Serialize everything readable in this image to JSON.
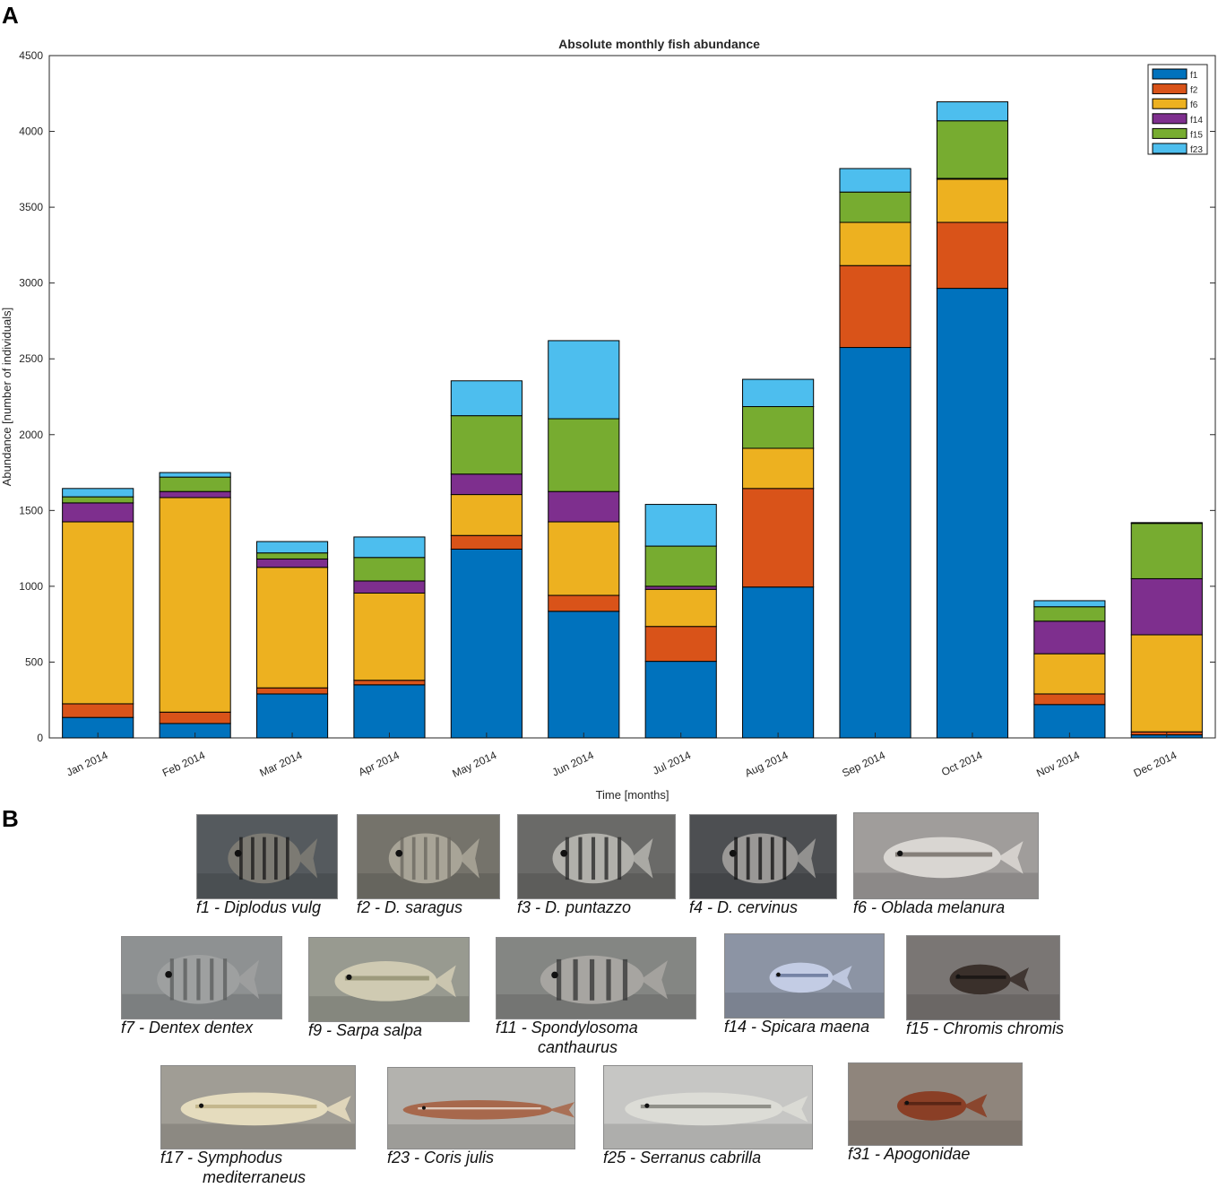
{
  "panels": {
    "a": "A",
    "b": "B"
  },
  "chart_data": {
    "type": "bar",
    "stacked": true,
    "title": "Absolute monthly fish abundance",
    "xlabel": "Time [months]",
    "ylabel": "Abundance [number of individuals]",
    "ylim": [
      0,
      4500
    ],
    "yticks": [
      0,
      500,
      1000,
      1500,
      2000,
      2500,
      3000,
      3500,
      4000,
      4500
    ],
    "grid": false,
    "legend_position": "top-right",
    "categories": [
      "Jan 2014",
      "Feb 2014",
      "Mar 2014",
      "Apr 2014",
      "May 2014",
      "Jun 2014",
      "Jul 2014",
      "Aug 2014",
      "Sep 2014",
      "Oct 2014",
      "Nov 2014",
      "Dec 2014"
    ],
    "series": [
      {
        "name": "f1",
        "color": "#0072BD",
        "values": [
          135,
          95,
          290,
          350,
          1245,
          835,
          505,
          995,
          2575,
          2965,
          220,
          20
        ]
      },
      {
        "name": "f2",
        "color": "#D95319",
        "values": [
          90,
          75,
          40,
          30,
          90,
          105,
          230,
          650,
          540,
          435,
          70,
          20
        ]
      },
      {
        "name": "f6",
        "color": "#EDB120",
        "values": [
          1200,
          1415,
          795,
          575,
          270,
          485,
          245,
          265,
          285,
          285,
          265,
          640
        ]
      },
      {
        "name": "f14",
        "color": "#7E2F8E",
        "values": [
          125,
          40,
          55,
          80,
          135,
          200,
          20,
          0,
          0,
          5,
          215,
          370
        ]
      },
      {
        "name": "f15",
        "color": "#77AC30",
        "values": [
          40,
          95,
          40,
          155,
          385,
          480,
          265,
          275,
          200,
          380,
          95,
          365
        ]
      },
      {
        "name": "f23",
        "color": "#4DBEEE",
        "values": [
          55,
          30,
          75,
          135,
          230,
          515,
          275,
          180,
          155,
          125,
          40,
          5
        ]
      }
    ]
  },
  "fish_panel": {
    "rows": [
      [
        {
          "id": "f1",
          "caption": "f1 - Diplodus vulg",
          "icon": "fish-photo-f1"
        },
        {
          "id": "f2",
          "caption": "f2 - D. saragus",
          "icon": "fish-photo-f2"
        },
        {
          "id": "f3",
          "caption": "f3 - D. puntazzo",
          "icon": "fish-photo-f3"
        },
        {
          "id": "f4",
          "caption": "f4 - D. cervinus",
          "icon": "fish-photo-f4"
        },
        {
          "id": "f6",
          "caption": "f6 - Oblada melanura",
          "icon": "fish-photo-f6"
        }
      ],
      [
        {
          "id": "f7",
          "caption": "f7 - Dentex dentex",
          "icon": "fish-photo-f7"
        },
        {
          "id": "f9",
          "caption": "f9 - Sarpa salpa",
          "icon": "fish-photo-f9"
        },
        {
          "id": "f11",
          "caption": "f11 - Spondylosoma",
          "caption2": "canthaurus",
          "icon": "fish-photo-f11"
        },
        {
          "id": "f14",
          "caption": "f14 - Spicara maena",
          "icon": "fish-photo-f14"
        },
        {
          "id": "f15",
          "caption": "f15 - Chromis chromis",
          "icon": "fish-photo-f15"
        }
      ],
      [
        {
          "id": "f17",
          "caption": "f17 - Symphodus",
          "caption2": "mediterraneus",
          "icon": "fish-photo-f17"
        },
        {
          "id": "f23",
          "caption": "f23 - Coris julis",
          "icon": "fish-photo-f23"
        },
        {
          "id": "f25",
          "caption": "f25 - Serranus cabrilla",
          "icon": "fish-photo-f25"
        },
        {
          "id": "f31",
          "caption": "f31 - Apogonidae",
          "icon": "fish-photo-f31"
        }
      ]
    ]
  }
}
